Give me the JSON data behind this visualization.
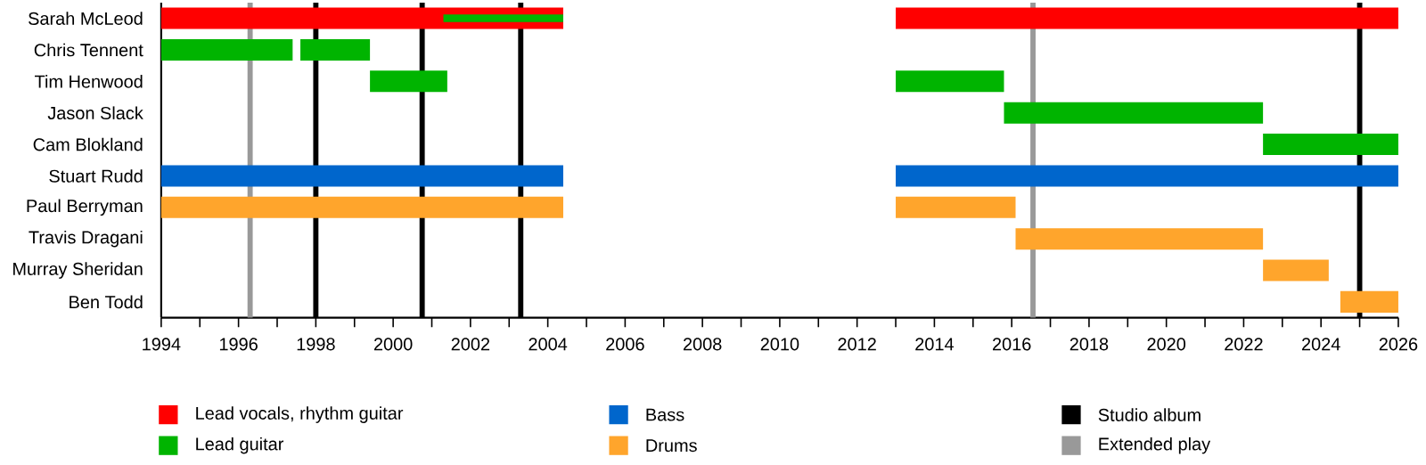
{
  "chart_data": {
    "type": "bar",
    "orientation": "horizontal",
    "legend": "bottom",
    "grid": false,
    "categories": [
      "Sarah McLeod",
      "Chris Tennent",
      "Tim Henwood",
      "Jason Slack",
      "Cam Blokland",
      "Stuart Rudd",
      "Paul Berryman",
      "Travis Dragani",
      "Murray Sheridan",
      "Ben Todd"
    ],
    "series": [
      {
        "name": "Lead vocals, rhythm guitar",
        "color": "#ff0000",
        "base": [
          1994,
          null,
          null,
          null,
          null,
          null,
          null,
          null,
          null,
          null
        ],
        "values": [
          10.4,
          null,
          null,
          null,
          null,
          null,
          null,
          null,
          null,
          null
        ]
      },
      {
        "color": "#ff0000",
        "base": [
          2013,
          null,
          null,
          null,
          null,
          null,
          null,
          null,
          null,
          null
        ],
        "values": [
          13,
          null,
          null,
          null,
          null,
          null,
          null,
          null,
          null,
          null
        ]
      },
      {
        "name": "Lead guitar",
        "color": "#00b400",
        "base": [
          2001.3,
          1994,
          1999.4,
          2015.8,
          2022.5,
          null,
          null,
          null,
          null,
          null
        ],
        "values": [
          3.1,
          3.4,
          2.0,
          6.7,
          3.5,
          null,
          null,
          null,
          null,
          null
        ]
      },
      {
        "color": "#00b400",
        "base": [
          null,
          1997.6,
          2013,
          null,
          null,
          null,
          null,
          null,
          null,
          null
        ],
        "values": [
          null,
          1.8,
          2.8,
          null,
          null,
          null,
          null,
          null,
          null,
          null
        ]
      },
      {
        "name": "Bass",
        "color": "#0066cc",
        "base": [
          null,
          null,
          null,
          null,
          null,
          1994,
          null,
          null,
          null,
          null
        ],
        "values": [
          null,
          null,
          null,
          null,
          null,
          10.4,
          null,
          null,
          null,
          null
        ]
      },
      {
        "color": "#0066cc",
        "base": [
          null,
          null,
          null,
          null,
          null,
          2013,
          null,
          null,
          null,
          null
        ],
        "values": [
          null,
          null,
          null,
          null,
          null,
          13,
          null,
          null,
          null,
          null
        ]
      },
      {
        "name": "Drums",
        "color": "#ffa52c",
        "base": [
          null,
          null,
          null,
          null,
          null,
          null,
          1994,
          2016.1,
          2022.5,
          2024.5
        ],
        "values": [
          null,
          null,
          null,
          null,
          null,
          null,
          10.4,
          6.4,
          1.7,
          1.5
        ]
      },
      {
        "color": "#ffa52c",
        "base": [
          null,
          null,
          null,
          null,
          null,
          null,
          2013,
          null,
          null,
          null
        ],
        "values": [
          null,
          null,
          null,
          null,
          null,
          null,
          3.1,
          null,
          null,
          null
        ]
      }
    ],
    "ref_lines": [
      {
        "axis": "x",
        "value": 1998,
        "label": "Studio album",
        "color": "#000000"
      },
      {
        "axis": "x",
        "value": 2000.75,
        "color": "#000000"
      },
      {
        "axis": "x",
        "value": 2003.3,
        "color": "#000000"
      },
      {
        "axis": "x",
        "value": 2025,
        "color": "#000000"
      },
      {
        "axis": "x",
        "value": 1996.3,
        "label": "Extended play",
        "color": "#999999"
      },
      {
        "axis": "x",
        "value": 2016.55,
        "color": "#999999"
      }
    ],
    "xlim": [
      1994,
      2026
    ],
    "xticks": [
      1994,
      {
        "value": 1995,
        "label": null
      },
      1996,
      {
        "value": 1997,
        "label": null
      },
      1998,
      {
        "value": 1999,
        "label": null
      },
      2000,
      {
        "value": 2001,
        "label": null
      },
      2002,
      {
        "value": 2003,
        "label": null
      },
      2004,
      {
        "value": 2005,
        "label": null
      },
      2006,
      {
        "value": 2007,
        "label": null
      },
      2008,
      {
        "value": 2009,
        "label": null
      },
      2010,
      {
        "value": 2011,
        "label": null
      },
      2012,
      {
        "value": 2013,
        "label": null
      },
      2014,
      {
        "value": 2015,
        "label": null
      },
      2016,
      {
        "value": 2017,
        "label": null
      },
      2018,
      {
        "value": 2019,
        "label": null
      },
      2020,
      {
        "value": 2021,
        "label": null
      },
      2022,
      {
        "value": 2023,
        "label": null
      },
      2024,
      {
        "value": 2025,
        "label": null
      },
      2026
    ]
  }
}
